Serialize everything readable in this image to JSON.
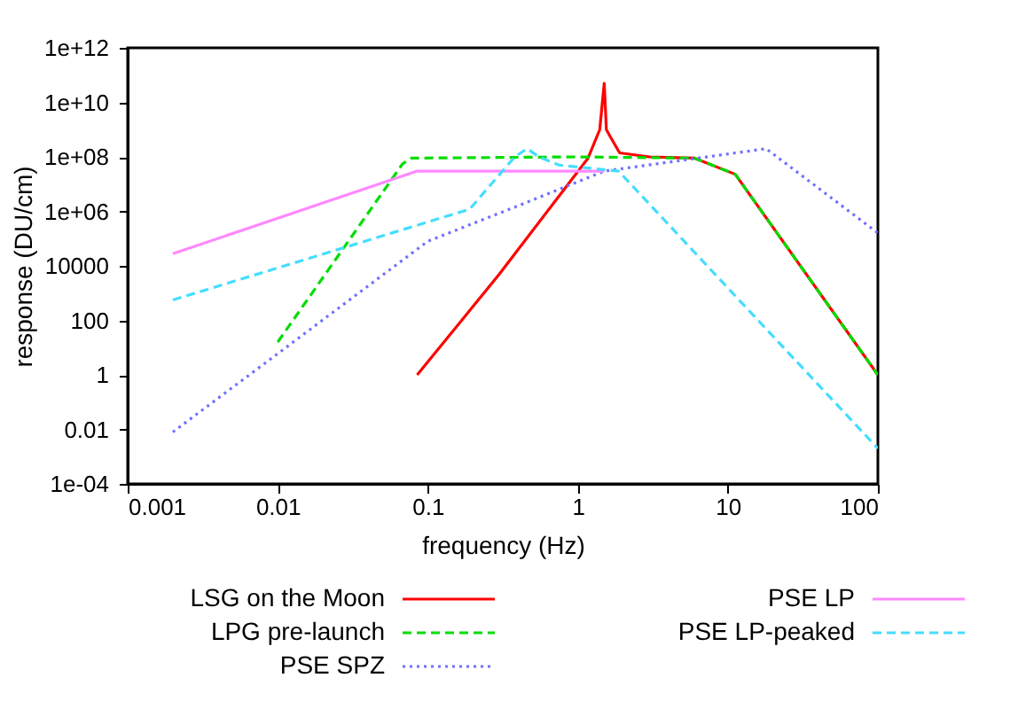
{
  "chart_data": {
    "type": "line",
    "xlabel": "frequency (Hz)",
    "ylabel": "response (DU/cm)",
    "log": "xy",
    "grid": false,
    "legend": "bottom",
    "marker": "none",
    "xlim": [
      0.001,
      100
    ],
    "xticks": [
      0.001,
      0.01,
      0.1,
      1,
      10,
      100
    ],
    "ylim": [
      0.0001,
      1000000000000.0
    ],
    "yticks": [
      {
        "value": 0.0001,
        "label": "1e-04"
      },
      0.01,
      1,
      100,
      10000,
      {
        "value": 1000000.0,
        "label": "1e+06"
      },
      {
        "value": 100000000.0,
        "label": "1e+08"
      },
      {
        "value": 10000000000.0,
        "label": "1e+10"
      },
      {
        "value": 1000000000000.0,
        "label": "1e+12"
      }
    ],
    "series": [
      {
        "name": "LSG on the Moon",
        "color": "#ff0000",
        "line_style": "solid",
        "x": [
          0.085,
          0.3,
          1.17,
          1.4,
          1.5,
          1.55,
          1.63,
          1.9,
          3,
          6,
          11.2,
          100
        ],
        "values": [
          1,
          5000,
          90000000.0,
          1000000000.0,
          50000000000.0,
          1000000000.0,
          600000000.0,
          140000000.0,
          100000000.0,
          90000000.0,
          23000000.0,
          1
        ]
      },
      {
        "name": "LPG pre-launch",
        "color": "#00dd00",
        "line_style": "dashed",
        "x": [
          0.01,
          0.068,
          0.078,
          1,
          6,
          11.2,
          100
        ],
        "values": [
          16,
          56000000.0,
          90000000.0,
          100000000.0,
          90000000.0,
          23000000.0,
          1
        ]
      },
      {
        "name": "PSE SPZ",
        "color": "#7070ff",
        "line_style": "dotted",
        "x": [
          0.002,
          0.01,
          0.1,
          0.4,
          1.5,
          18,
          100
        ],
        "values": [
          0.008,
          6,
          80000,
          1600000.0,
          30000000.0,
          200000000.0,
          160000.0
        ]
      },
      {
        "name": "PSE LP",
        "color": "#ff88ff",
        "line_style": "solid",
        "x": [
          0.002,
          0.085,
          1.5
        ],
        "values": [
          28000,
          30000000.0,
          30000000.0
        ]
      },
      {
        "name": "PSE LP-peaked",
        "color": "#44ddff",
        "line_style": "dashed",
        "x": [
          0.002,
          0.19,
          0.38,
          0.46,
          0.55,
          0.75,
          1.87,
          100
        ],
        "values": [
          560,
          1200000.0,
          100000000.0,
          200000000.0,
          100000000.0,
          50000000.0,
          30000000.0,
          0.002
        ]
      }
    ]
  }
}
